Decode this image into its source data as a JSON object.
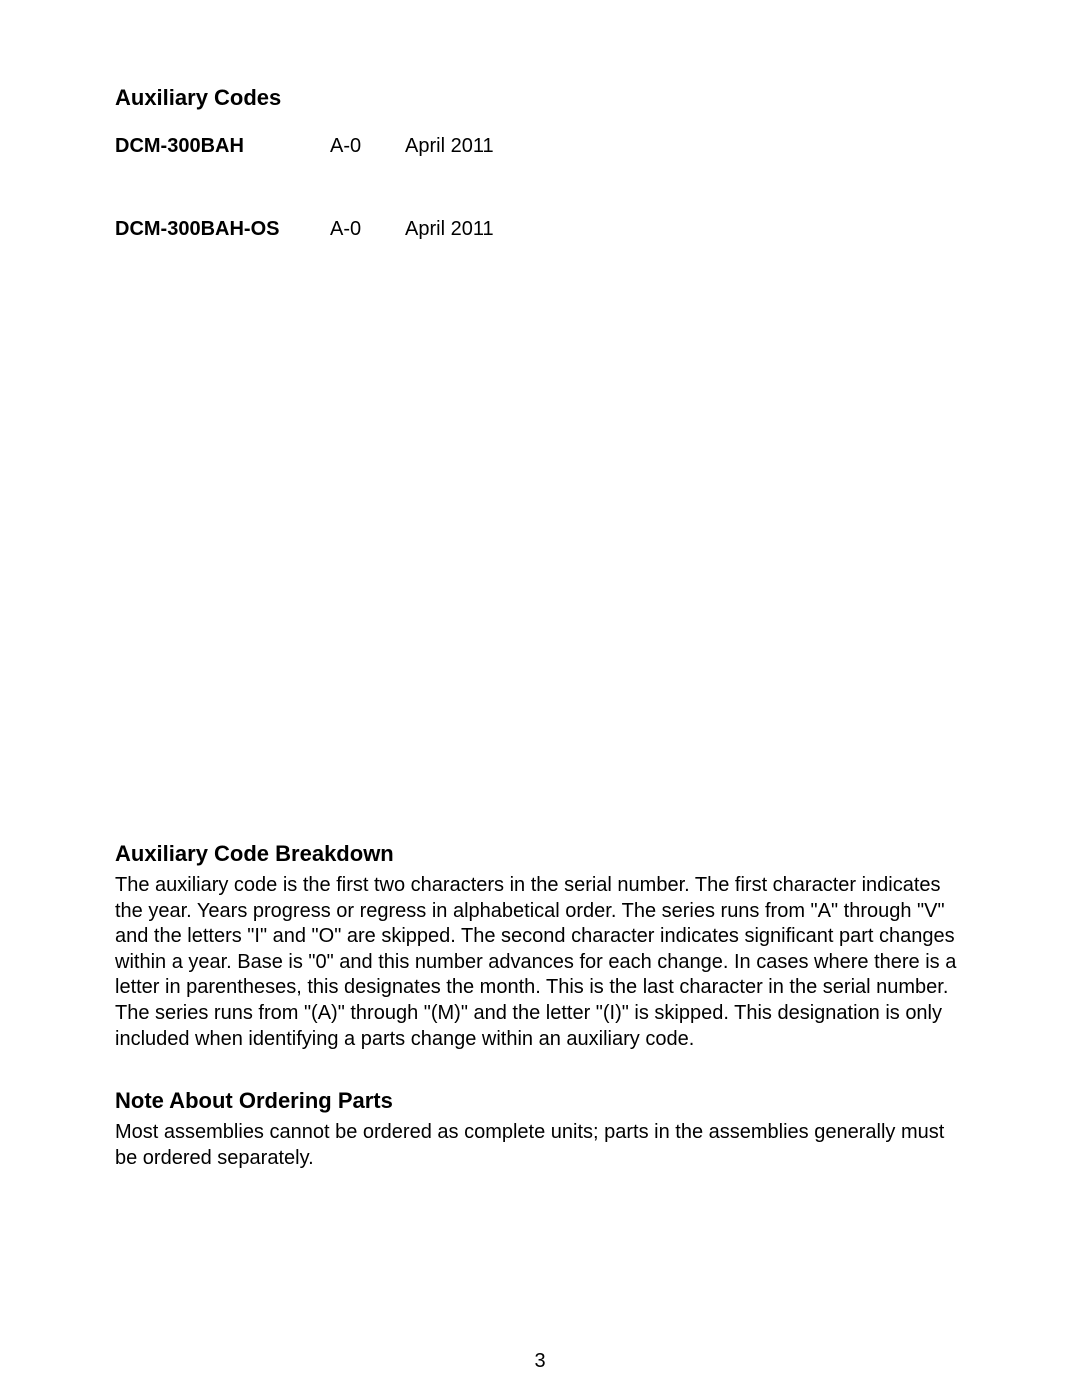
{
  "heading1": "Auxiliary Codes",
  "codes": {
    "row1": {
      "model": "DCM-300BAH",
      "aux": "A-0",
      "date": "April 2011"
    },
    "row2": {
      "model": "DCM-300BAH-OS",
      "aux": "A-0",
      "date": "April 2011"
    }
  },
  "heading2": "Auxiliary Code Breakdown",
  "body2": "The auxiliary code is the first two characters in the serial number. The first character indicates the year. Years progress or regress in alphabetical order. The series runs from \"A\" through \"V\" and the letters \"I\" and \"O\" are skipped. The second character indicates significant part changes within a year. Base is \"0\" and this number advances for each change. In cases where there is a letter in parentheses, this designates the month. This is the last character in the serial number. The series runs from \"(A)\" through \"(M)\" and the letter \"(I)\" is skipped. This designation is only included when identifying a parts change within an auxiliary code.",
  "heading3": "Note About Ordering Parts",
  "body3": "Most assemblies cannot be ordered as complete units; parts in the assemblies generally must be ordered separately.",
  "pageNumber": "3"
}
